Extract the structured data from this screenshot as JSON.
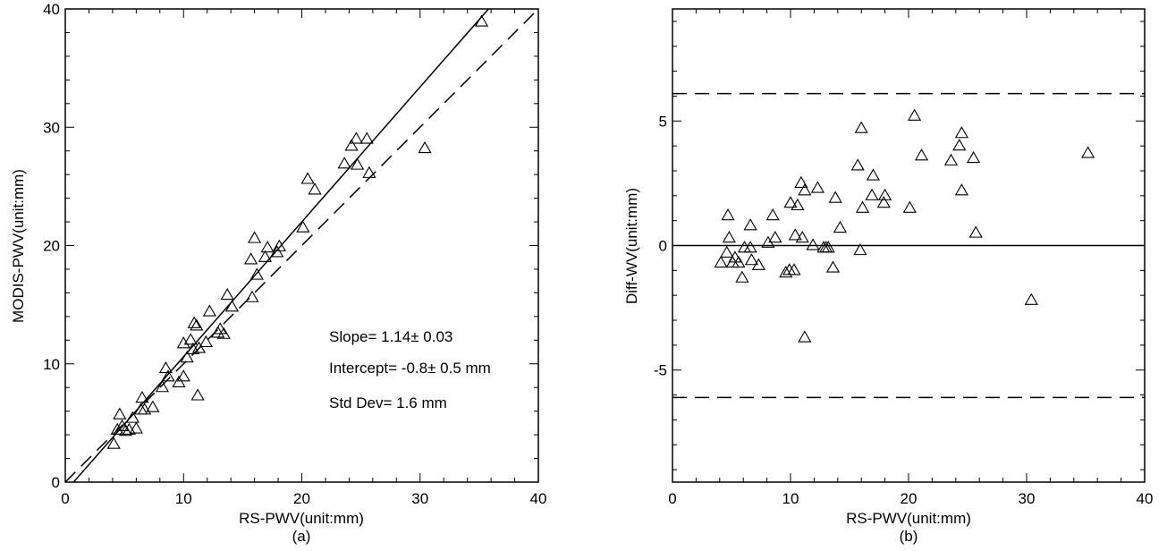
{
  "chart_data": [
    {
      "id": "a",
      "type": "scatter",
      "xlabel": "RS-PWV(unit:mm)",
      "ylabel": "MODIS-PWV(unit:mm)",
      "caption": "(a)",
      "xlim": [
        0,
        40
      ],
      "ylim": [
        0,
        40
      ],
      "xticks": [
        0,
        10,
        20,
        30,
        40
      ],
      "yticks": [
        0,
        10,
        20,
        30,
        40
      ],
      "annotations": [
        "Slope=  1.14±  0.03",
        "Intercept= -0.8±  0.5 mm",
        "Std Dev=   1.6 mm"
      ],
      "lines": [
        {
          "style": "solid",
          "slope": 1.14,
          "intercept": -0.8
        },
        {
          "style": "dashed",
          "slope": 1.0,
          "intercept": 0.0
        }
      ],
      "points": [
        [
          4.1,
          3.2
        ],
        [
          4.4,
          4.4
        ],
        [
          4.6,
          5.7
        ],
        [
          4.8,
          4.7
        ],
        [
          5.1,
          4.3
        ],
        [
          5.4,
          4.4
        ],
        [
          5.7,
          5.4
        ],
        [
          6.0,
          4.5
        ],
        [
          6.4,
          6.1
        ],
        [
          6.5,
          7.1
        ],
        [
          6.7,
          6.1
        ],
        [
          7.4,
          6.3
        ],
        [
          8.2,
          8.0
        ],
        [
          8.5,
          9.6
        ],
        [
          8.7,
          8.9
        ],
        [
          9.6,
          8.4
        ],
        [
          10.0,
          11.7
        ],
        [
          10.0,
          8.9
        ],
        [
          10.3,
          10.5
        ],
        [
          10.6,
          12.0
        ],
        [
          10.8,
          11.2
        ],
        [
          10.9,
          13.4
        ],
        [
          11.1,
          13.2
        ],
        [
          11.2,
          7.3
        ],
        [
          11.3,
          11.3
        ],
        [
          11.9,
          11.8
        ],
        [
          12.2,
          14.4
        ],
        [
          12.9,
          12.6
        ],
        [
          13.1,
          12.9
        ],
        [
          13.4,
          12.5
        ],
        [
          13.7,
          15.8
        ],
        [
          14.1,
          14.8
        ],
        [
          15.7,
          18.8
        ],
        [
          15.8,
          15.6
        ],
        [
          16.0,
          20.6
        ],
        [
          16.2,
          17.5
        ],
        [
          16.9,
          19.0
        ],
        [
          17.1,
          19.8
        ],
        [
          17.9,
          19.4
        ],
        [
          18.1,
          19.9
        ],
        [
          20.1,
          21.5
        ],
        [
          20.5,
          25.6
        ],
        [
          21.1,
          24.7
        ],
        [
          23.6,
          26.9
        ],
        [
          24.2,
          28.4
        ],
        [
          24.6,
          29.0
        ],
        [
          24.7,
          26.8
        ],
        [
          25.5,
          29.0
        ],
        [
          25.7,
          26.1
        ],
        [
          30.4,
          28.2
        ],
        [
          35.2,
          38.9
        ]
      ]
    },
    {
      "id": "b",
      "type": "scatter",
      "xlabel": "RS-PWV(unit:mm)",
      "ylabel": "Diff-WV(unit:mm)",
      "caption": "(b)",
      "xlim": [
        0,
        40
      ],
      "ylim": [
        -9.5,
        9.5
      ],
      "xticks": [
        0,
        10,
        20,
        30,
        40
      ],
      "yticks": [
        -5,
        0,
        5
      ],
      "lines": [
        {
          "style": "solid",
          "y": 0
        },
        {
          "style": "dashed",
          "y": 6.1
        },
        {
          "style": "dashed",
          "y": -6.1
        }
      ],
      "points": [
        [
          4.1,
          -0.7
        ],
        [
          4.6,
          -0.3
        ],
        [
          4.7,
          1.2
        ],
        [
          4.8,
          0.3
        ],
        [
          5.1,
          -0.7
        ],
        [
          5.3,
          -0.5
        ],
        [
          5.6,
          -0.7
        ],
        [
          5.9,
          -1.3
        ],
        [
          6.1,
          -0.1
        ],
        [
          6.6,
          -0.1
        ],
        [
          6.6,
          0.8
        ],
        [
          6.7,
          -0.6
        ],
        [
          7.3,
          -0.8
        ],
        [
          8.1,
          0.1
        ],
        [
          8.5,
          1.2
        ],
        [
          8.7,
          0.3
        ],
        [
          9.6,
          -1.1
        ],
        [
          9.9,
          -1.0
        ],
        [
          10.0,
          1.7
        ],
        [
          10.3,
          -1.0
        ],
        [
          10.4,
          0.4
        ],
        [
          10.6,
          1.6
        ],
        [
          10.9,
          2.5
        ],
        [
          11.0,
          0.3
        ],
        [
          11.2,
          2.2
        ],
        [
          11.2,
          -3.7
        ],
        [
          11.9,
          0.0
        ],
        [
          12.3,
          2.3
        ],
        [
          12.8,
          -0.1
        ],
        [
          13.0,
          -0.1
        ],
        [
          13.2,
          -0.1
        ],
        [
          13.6,
          -0.9
        ],
        [
          13.8,
          1.9
        ],
        [
          14.2,
          0.7
        ],
        [
          15.7,
          3.2
        ],
        [
          15.9,
          -0.2
        ],
        [
          16.0,
          4.7
        ],
        [
          16.1,
          1.5
        ],
        [
          16.9,
          2.0
        ],
        [
          17.0,
          2.8
        ],
        [
          17.9,
          1.7
        ],
        [
          18.0,
          2.0
        ],
        [
          20.1,
          1.5
        ],
        [
          20.5,
          5.2
        ],
        [
          21.1,
          3.6
        ],
        [
          23.6,
          3.4
        ],
        [
          24.3,
          4.0
        ],
        [
          24.5,
          4.5
        ],
        [
          24.5,
          2.2
        ],
        [
          25.5,
          3.5
        ],
        [
          25.7,
          0.5
        ],
        [
          30.4,
          -2.2
        ],
        [
          35.2,
          3.7
        ]
      ]
    }
  ]
}
